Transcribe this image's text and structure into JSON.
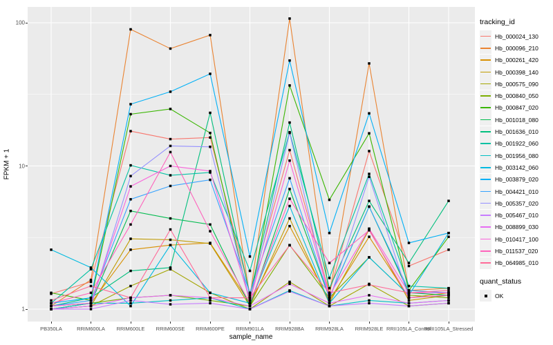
{
  "figure": {
    "background": "#ffffff",
    "panel_color": "#EBEBEB",
    "gridline_color": "#FFFFFF",
    "point_color": "#000000"
  },
  "legend": {
    "tracking_title": "tracking_id",
    "quant_title": "quant_status",
    "quant_items": [
      {
        "label": "OK",
        "marker": "black-square"
      }
    ]
  },
  "chart_data": {
    "type": "line",
    "title": "",
    "xlabel": "sample_name",
    "ylabel": "FPKM + 1",
    "y_scale": "log10",
    "y_ticks": [
      1,
      10,
      100
    ],
    "y_minor_gridlines": [
      3.1623,
      31.623
    ],
    "ylim": [
      0.82,
      129
    ],
    "legend_position": "right",
    "grid": "on",
    "point_shape": "square",
    "categories": [
      "PB350LA",
      "RRIM600LA",
      "RRIM600LE",
      "RRIM600SE",
      "RRIM600PE",
      "RRIM901LA",
      "RRIM928BA",
      "RRIM928LA",
      "RRIM928LE",
      "RRII105LA_Control",
      "RRII105LA_Stressed"
    ],
    "series": [
      {
        "name": "Hb_000024_130",
        "color": "#F8766D",
        "quant_status": "OK",
        "values": [
          1.28,
          1.55,
          17.5,
          15.4,
          15.8,
          1.3,
          12.9,
          1.3,
          12.7,
          2.0,
          2.6
        ]
      },
      {
        "name": "Hb_000096_210",
        "color": "#EA8331",
        "quant_status": "OK",
        "values": [
          1.05,
          1.6,
          90,
          66,
          82,
          1.2,
          107,
          1.25,
          52,
          1.35,
          1.4
        ]
      },
      {
        "name": "Hb_000261_420",
        "color": "#D89000",
        "quant_status": "OK",
        "values": [
          1.0,
          1.1,
          2.6,
          2.8,
          2.9,
          1.1,
          3.8,
          1.15,
          3.2,
          1.2,
          1.3
        ]
      },
      {
        "name": "Hb_000398_140",
        "color": "#C09B00",
        "quant_status": "OK",
        "values": [
          1.0,
          1.05,
          3.1,
          3.05,
          2.87,
          1.05,
          4.3,
          1.1,
          3.6,
          1.15,
          1.25
        ]
      },
      {
        "name": "Hb_000575_090",
        "color": "#A3A500",
        "quant_status": "OK",
        "values": [
          1.0,
          1.05,
          1.45,
          1.9,
          1.3,
          1.0,
          1.55,
          1.05,
          1.5,
          1.05,
          1.1
        ]
      },
      {
        "name": "Hb_000840_050",
        "color": "#7CAE00",
        "quant_status": "OK",
        "values": [
          1.05,
          1.1,
          1.2,
          1.25,
          1.15,
          1.05,
          2.8,
          1.2,
          2.3,
          1.25,
          1.2
        ]
      },
      {
        "name": "Hb_000847_020",
        "color": "#39B600",
        "quant_status": "OK",
        "values": [
          1.3,
          1.15,
          23,
          25,
          17,
          1.1,
          36.5,
          5.8,
          16.9,
          1.35,
          3.2
        ]
      },
      {
        "name": "Hb_001018_080",
        "color": "#00BB4E",
        "quant_status": "OK",
        "values": [
          1.0,
          1.1,
          4.85,
          4.3,
          3.9,
          1.05,
          6.9,
          1.2,
          5.2,
          1.3,
          1.25
        ]
      },
      {
        "name": "Hb_001636_010",
        "color": "#00BF7D",
        "quant_status": "OK",
        "values": [
          1.05,
          1.2,
          1.85,
          1.95,
          23.5,
          1.25,
          20.1,
          1.4,
          5.7,
          2.1,
          5.7
        ]
      },
      {
        "name": "Hb_001922_060",
        "color": "#00C1A3",
        "quant_status": "OK",
        "values": [
          1.1,
          1.9,
          10.1,
          8.6,
          9.0,
          1.85,
          17.2,
          1.65,
          8.8,
          1.45,
          1.4
        ]
      },
      {
        "name": "Hb_001956_080",
        "color": "#00BFC4",
        "quant_status": "OK",
        "values": [
          1.0,
          1.1,
          1.1,
          1.15,
          1.2,
          1.0,
          1.35,
          1.05,
          1.15,
          1.1,
          1.15
        ]
      },
      {
        "name": "Hb_003142_060",
        "color": "#00BAE0",
        "quant_status": "OK",
        "values": [
          2.6,
          1.95,
          1.05,
          2.8,
          1.3,
          1.1,
          5.25,
          1.1,
          2.3,
          1.25,
          3.4
        ]
      },
      {
        "name": "Hb_003879_020",
        "color": "#00B0F6",
        "quant_status": "OK",
        "values": [
          1.1,
          1.2,
          27,
          33,
          44,
          2.33,
          54.5,
          3.4,
          23.3,
          2.9,
          3.4
        ]
      },
      {
        "name": "Hb_004421_010",
        "color": "#35A2FF",
        "quant_status": "OK",
        "values": [
          1.05,
          1.15,
          5.85,
          7.25,
          8.0,
          1.3,
          8.2,
          1.2,
          5.2,
          1.35,
          1.3
        ]
      },
      {
        "name": "Hb_005357_020",
        "color": "#9590FF",
        "quant_status": "OK",
        "values": [
          1.0,
          1.05,
          8.5,
          13.8,
          13.6,
          1.15,
          17.0,
          1.15,
          8.4,
          1.2,
          1.25
        ]
      },
      {
        "name": "Hb_005467_010",
        "color": "#C77CFF",
        "quant_status": "OK",
        "values": [
          1.0,
          1.0,
          1.15,
          1.08,
          1.1,
          1.0,
          1.33,
          1.05,
          1.1,
          1.05,
          1.1
        ]
      },
      {
        "name": "Hb_008899_030",
        "color": "#E76BF3",
        "quant_status": "OK",
        "values": [
          1.0,
          1.05,
          1.2,
          1.25,
          1.2,
          1.05,
          1.5,
          1.1,
          1.25,
          1.1,
          1.15
        ]
      },
      {
        "name": "Hb_010417_100",
        "color": "#FA62DB",
        "quant_status": "OK",
        "values": [
          1.05,
          1.1,
          7.2,
          10.0,
          9.2,
          1.15,
          10.9,
          1.25,
          3.65,
          1.3,
          1.3
        ]
      },
      {
        "name": "Hb_011537_020",
        "color": "#FF62BC",
        "quant_status": "OK",
        "values": [
          1.1,
          1.3,
          3.9,
          12.5,
          3.5,
          1.1,
          5.9,
          2.1,
          3.55,
          1.2,
          1.25
        ]
      },
      {
        "name": "Hb_064985_010",
        "color": "#FF6A98",
        "quant_status": "OK",
        "values": [
          1.15,
          1.45,
          1.2,
          3.6,
          1.2,
          1.2,
          2.79,
          1.3,
          1.48,
          1.3,
          1.35
        ]
      }
    ]
  }
}
